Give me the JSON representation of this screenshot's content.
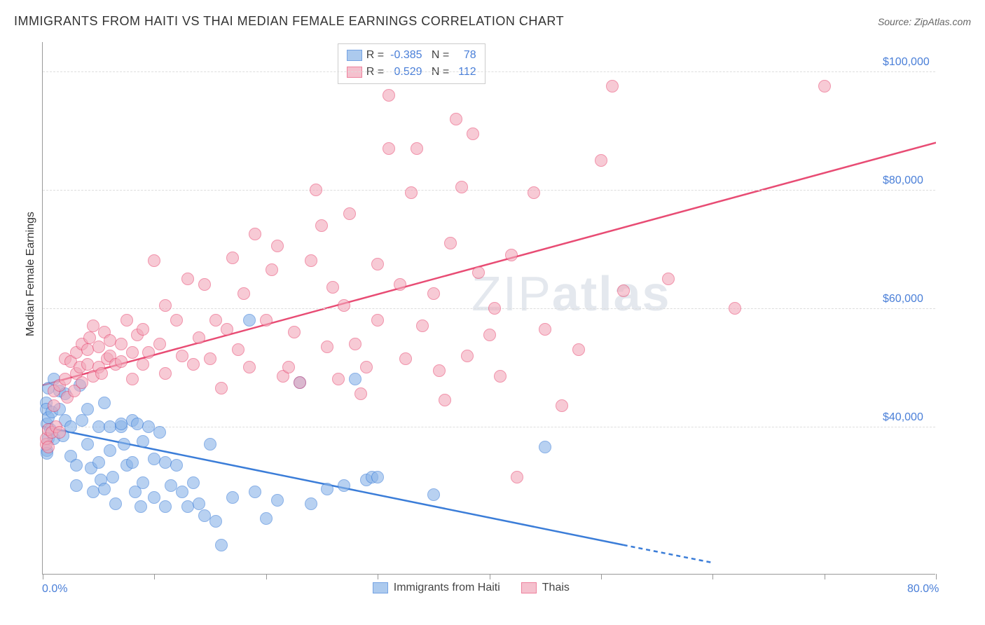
{
  "header": {
    "title": "IMMIGRANTS FROM HAITI VS THAI MEDIAN FEMALE EARNINGS CORRELATION CHART",
    "source_prefix": "Source:",
    "source_name": "ZipAtlas.com"
  },
  "watermark": {
    "text_light": "ZIP",
    "text_bold": "atlas"
  },
  "chart": {
    "type": "scatter-correlation",
    "background_color": "#ffffff",
    "plot_border_color": "#999999",
    "grid_color": "#dddddd",
    "axis_label_color": "#333333",
    "tick_label_color": "#4a7fd8",
    "y_label": "Median Female Earnings",
    "x_range": [
      0,
      80
    ],
    "y_range": [
      15000,
      105000
    ],
    "x_ticks": [
      0,
      10,
      20,
      30,
      40,
      50,
      60,
      70,
      80
    ],
    "x_tick_labels": {
      "0": "0.0%",
      "80": "80.0%"
    },
    "y_ticks": [
      40000,
      60000,
      80000,
      100000
    ],
    "y_tick_labels": {
      "40000": "$40,000",
      "60000": "$60,000",
      "80000": "$80,000",
      "100000": "$100,000"
    },
    "marker_radius": 9,
    "marker_stroke_width": 1.5,
    "marker_fill_opacity": 0.35,
    "trend_line_width": 2.5
  },
  "series": [
    {
      "id": "haiti",
      "label": "Immigrants from Haiti",
      "fill_color": "#8ab4e8",
      "stroke_color": "#3b7dd8",
      "r_value": "-0.385",
      "n_value": "78",
      "trend_line": {
        "x1": 0,
        "y1": 40000,
        "x2": 52,
        "y2": 20000,
        "dash_after_x": 52,
        "x2_dash": 60,
        "y2_dash": 17000
      },
      "points": [
        [
          0.3,
          44000
        ],
        [
          0.3,
          43000
        ],
        [
          0.4,
          40500
        ],
        [
          0.5,
          41500
        ],
        [
          0.5,
          46500
        ],
        [
          0.7,
          39500
        ],
        [
          0.5,
          38000
        ],
        [
          0.4,
          36000
        ],
        [
          0.4,
          35500
        ],
        [
          0.8,
          42500
        ],
        [
          1.0,
          48000
        ],
        [
          1.0,
          38000
        ],
        [
          1.5,
          43000
        ],
        [
          1.5,
          46000
        ],
        [
          2.0,
          45500
        ],
        [
          2.0,
          41000
        ],
        [
          1.8,
          38500
        ],
        [
          2.5,
          40000
        ],
        [
          2.5,
          35000
        ],
        [
          3.0,
          33500
        ],
        [
          3.0,
          30000
        ],
        [
          3.3,
          47000
        ],
        [
          3.5,
          41000
        ],
        [
          4.0,
          43000
        ],
        [
          4.0,
          37000
        ],
        [
          4.3,
          33000
        ],
        [
          4.5,
          29000
        ],
        [
          5.0,
          40000
        ],
        [
          5.0,
          34000
        ],
        [
          5.2,
          31000
        ],
        [
          5.5,
          44000
        ],
        [
          5.5,
          29500
        ],
        [
          6.0,
          40000
        ],
        [
          6.0,
          36000
        ],
        [
          6.3,
          31500
        ],
        [
          6.5,
          27000
        ],
        [
          7.0,
          40000
        ],
        [
          7.0,
          40500
        ],
        [
          7.3,
          37000
        ],
        [
          7.5,
          33500
        ],
        [
          8.0,
          41000
        ],
        [
          8.0,
          34000
        ],
        [
          8.3,
          29000
        ],
        [
          8.5,
          40500
        ],
        [
          8.8,
          26500
        ],
        [
          9.0,
          37500
        ],
        [
          9.0,
          30500
        ],
        [
          9.5,
          40000
        ],
        [
          10.0,
          34500
        ],
        [
          10.0,
          28000
        ],
        [
          10.5,
          39000
        ],
        [
          11.0,
          34000
        ],
        [
          11.0,
          26500
        ],
        [
          11.5,
          30000
        ],
        [
          12.0,
          33500
        ],
        [
          12.5,
          29000
        ],
        [
          13.0,
          26500
        ],
        [
          13.5,
          30500
        ],
        [
          14.0,
          27000
        ],
        [
          14.5,
          25000
        ],
        [
          15.0,
          37000
        ],
        [
          15.5,
          24000
        ],
        [
          16.0,
          20000
        ],
        [
          17.0,
          28000
        ],
        [
          18.5,
          58000
        ],
        [
          19.0,
          29000
        ],
        [
          20.0,
          24500
        ],
        [
          21.0,
          27500
        ],
        [
          23.0,
          47500
        ],
        [
          24.0,
          27000
        ],
        [
          25.5,
          29500
        ],
        [
          27.0,
          30000
        ],
        [
          28.0,
          48000
        ],
        [
          29.0,
          31000
        ],
        [
          29.5,
          31500
        ],
        [
          30.0,
          31500
        ],
        [
          35.0,
          28500
        ],
        [
          45.0,
          36500
        ]
      ]
    },
    {
      "id": "thai",
      "label": "Thais",
      "fill_color": "#f2a8ba",
      "stroke_color": "#e84c74",
      "r_value": "0.529",
      "n_value": "112",
      "trend_line": {
        "x1": 0,
        "y1": 47000,
        "x2": 80,
        "y2": 88000
      },
      "points": [
        [
          0.3,
          37000
        ],
        [
          0.3,
          38000
        ],
        [
          0.5,
          39500
        ],
        [
          0.5,
          36500
        ],
        [
          0.8,
          39000
        ],
        [
          1.0,
          46000
        ],
        [
          1.0,
          43500
        ],
        [
          1.2,
          40000
        ],
        [
          1.5,
          47000
        ],
        [
          1.5,
          39000
        ],
        [
          2.0,
          51500
        ],
        [
          2.0,
          48000
        ],
        [
          2.2,
          45000
        ],
        [
          2.5,
          51000
        ],
        [
          2.8,
          46000
        ],
        [
          3.0,
          52500
        ],
        [
          3.0,
          49000
        ],
        [
          3.3,
          50000
        ],
        [
          3.5,
          54000
        ],
        [
          3.5,
          47500
        ],
        [
          4.0,
          53000
        ],
        [
          4.0,
          50500
        ],
        [
          4.2,
          55000
        ],
        [
          4.5,
          57000
        ],
        [
          4.5,
          48500
        ],
        [
          5.0,
          53500
        ],
        [
          5.0,
          50000
        ],
        [
          5.3,
          49000
        ],
        [
          5.5,
          56000
        ],
        [
          5.8,
          51500
        ],
        [
          6.0,
          52000
        ],
        [
          6.0,
          54500
        ],
        [
          6.5,
          50500
        ],
        [
          7.0,
          54000
        ],
        [
          7.0,
          51000
        ],
        [
          7.5,
          58000
        ],
        [
          8.0,
          48000
        ],
        [
          8.0,
          52500
        ],
        [
          8.5,
          55500
        ],
        [
          9.0,
          50500
        ],
        [
          9.0,
          56500
        ],
        [
          9.5,
          52500
        ],
        [
          10.0,
          68000
        ],
        [
          10.5,
          54000
        ],
        [
          11.0,
          49000
        ],
        [
          11.0,
          60500
        ],
        [
          12.0,
          58000
        ],
        [
          12.5,
          52000
        ],
        [
          13.0,
          65000
        ],
        [
          13.5,
          50500
        ],
        [
          14.0,
          55000
        ],
        [
          14.5,
          64000
        ],
        [
          15.0,
          51500
        ],
        [
          15.5,
          58000
        ],
        [
          16.0,
          46500
        ],
        [
          16.5,
          56500
        ],
        [
          17.0,
          68500
        ],
        [
          17.5,
          53000
        ],
        [
          18.0,
          62500
        ],
        [
          18.5,
          50000
        ],
        [
          19.0,
          72500
        ],
        [
          20.0,
          58000
        ],
        [
          20.5,
          66500
        ],
        [
          21.0,
          70500
        ],
        [
          21.5,
          48500
        ],
        [
          22.0,
          50000
        ],
        [
          22.5,
          56000
        ],
        [
          23.0,
          47500
        ],
        [
          24.0,
          68000
        ],
        [
          24.5,
          80000
        ],
        [
          25.0,
          74000
        ],
        [
          25.5,
          53500
        ],
        [
          26.0,
          63500
        ],
        [
          26.5,
          48000
        ],
        [
          27.0,
          60500
        ],
        [
          27.5,
          76000
        ],
        [
          28.0,
          54000
        ],
        [
          28.5,
          45500
        ],
        [
          29.0,
          50000
        ],
        [
          30.0,
          58000
        ],
        [
          30.0,
          67500
        ],
        [
          31.0,
          96000
        ],
        [
          31.0,
          87000
        ],
        [
          32.0,
          64000
        ],
        [
          32.5,
          51500
        ],
        [
          33.0,
          79500
        ],
        [
          33.5,
          87000
        ],
        [
          34.0,
          57000
        ],
        [
          35.0,
          62500
        ],
        [
          35.5,
          49500
        ],
        [
          36.0,
          44500
        ],
        [
          36.5,
          71000
        ],
        [
          37.0,
          92000
        ],
        [
          37.5,
          80500
        ],
        [
          38.0,
          52000
        ],
        [
          38.5,
          89500
        ],
        [
          39.0,
          66000
        ],
        [
          40.0,
          55500
        ],
        [
          40.5,
          60000
        ],
        [
          41.0,
          48500
        ],
        [
          42.0,
          69000
        ],
        [
          42.5,
          31500
        ],
        [
          44.0,
          79500
        ],
        [
          45.0,
          56500
        ],
        [
          46.5,
          43500
        ],
        [
          48.0,
          53000
        ],
        [
          50.0,
          85000
        ],
        [
          51.0,
          97500
        ],
        [
          52.0,
          63000
        ],
        [
          56.0,
          65000
        ],
        [
          62.0,
          60000
        ],
        [
          70.0,
          97500
        ]
      ]
    }
  ],
  "stats_box": {
    "r_label": "R =",
    "n_label": "N ="
  },
  "legend": {
    "items": [
      "Immigrants from Haiti",
      "Thais"
    ]
  }
}
